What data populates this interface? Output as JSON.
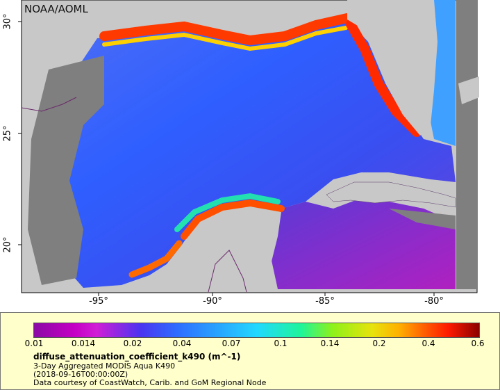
{
  "credit": "NOAA/AOML",
  "longitudes": [
    "-95°",
    "-90°",
    "-85°",
    "-80°"
  ],
  "latitudes": [
    "30°",
    "25°",
    "20°"
  ],
  "colors": {
    "land": "#c8c8c8",
    "no_data": "#7f7f7f",
    "ocean_low": "#3b7bff",
    "ocean_high": "#ff3000",
    "legend_bg": "#ffffcc",
    "border": "#6b2a6b"
  },
  "colorbar": {
    "ticks": [
      "0.01",
      "0.014",
      "0.02",
      "0.04",
      "0.07",
      "0.1",
      "0.14",
      "0.2",
      "0.4",
      "0.6"
    ]
  },
  "legend": {
    "title": "diffuse_attenuation_coefficient_k490 (m^-1)",
    "line1": "3-Day Aggregated MODIS Aqua K490",
    "line2": "(2018-09-16T00:00:00Z)",
    "line3": "Data courtesy of CoastWatch, Carib. and GoM Regional Node"
  }
}
